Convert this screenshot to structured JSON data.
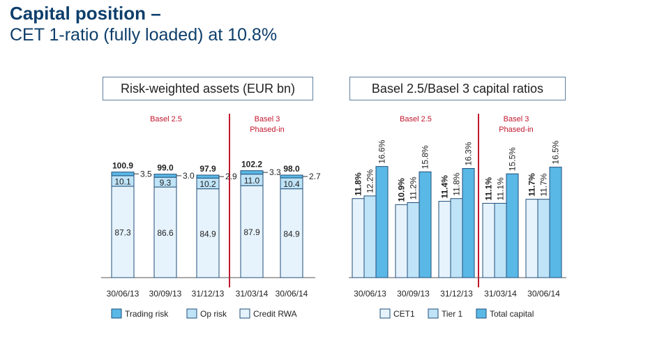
{
  "page": {
    "title": "Capital position –",
    "subtitle": "CET 1-ratio (fully loaded) at 10.8%"
  },
  "colors": {
    "title": "#0d3e6b",
    "divider": "#c0162c",
    "period_label": "#c0162c",
    "credit_rwa": "#e6f3fc",
    "op_risk": "#bfe3f7",
    "trading_risk": "#5ab8e6",
    "cet1": "#e6f3fc",
    "tier1": "#bfe3f7",
    "total_capital": "#5ab8e6",
    "bar_border": "#1f4e79"
  },
  "chart_data": [
    {
      "type": "bar",
      "stacked": true,
      "title": "Risk-weighted assets (EUR bn)",
      "categories": [
        "30/06/13",
        "30/09/13",
        "31/12/13",
        "31/03/14",
        "30/06/14"
      ],
      "series": [
        {
          "name": "Credit RWA",
          "values": [
            87.3,
            86.6,
            84.9,
            87.9,
            84.9
          ]
        },
        {
          "name": "Op risk",
          "values": [
            10.1,
            9.3,
            10.2,
            11.0,
            10.4
          ]
        },
        {
          "name": "Trading risk",
          "values": [
            3.5,
            3.0,
            2.9,
            3.3,
            2.7
          ]
        }
      ],
      "totals": [
        "100.9",
        "99.0",
        "97.9",
        "102.2",
        "98.0"
      ],
      "credit_labels": [
        "87.3",
        "86.6",
        "84.9",
        "87.9",
        "84.9"
      ],
      "op_labels": [
        "10.1",
        "9.3",
        "10.2",
        "11.0",
        "10.4"
      ],
      "trading_labels": [
        "3.5",
        "3.0",
        "2.9",
        "3.3",
        "2.7"
      ],
      "period_labels": {
        "left": "Basel 2.5",
        "right_line1": "Basel 3",
        "right_line2": "Phased-in"
      },
      "divider_after_index": 2,
      "legend": [
        "Trading risk",
        "Op risk",
        "Credit RWA"
      ],
      "legend_position": "bottom",
      "grid": false
    },
    {
      "type": "bar",
      "grouped": true,
      "title": "Basel 2.5/Basel 3 capital ratios",
      "categories": [
        "30/06/13",
        "30/09/13",
        "31/12/13",
        "31/03/14",
        "30/06/14"
      ],
      "series": [
        {
          "name": "CET1",
          "values": [
            11.8,
            10.9,
            11.4,
            11.1,
            11.7
          ],
          "labels": [
            "11.8%",
            "10.9%",
            "11.4%",
            "11.1%",
            "11.7%"
          ]
        },
        {
          "name": "Tier 1",
          "values": [
            12.2,
            11.2,
            11.8,
            11.1,
            11.7
          ],
          "labels": [
            "12.2%",
            "11.2%",
            "11.8%",
            "11.1%",
            "11.7%"
          ]
        },
        {
          "name": "Total capital",
          "values": [
            16.6,
            15.8,
            16.3,
            15.5,
            16.5
          ],
          "labels": [
            "16.6%",
            "15.8%",
            "16.3%",
            "15.5%",
            "16.5%"
          ]
        }
      ],
      "period_labels": {
        "left": "Basel 2.5",
        "right_line1": "Basel 3",
        "right_line2": "Phased-in"
      },
      "divider_after_index": 2,
      "legend": [
        "CET1",
        "Tier 1",
        "Total capital"
      ],
      "legend_position": "bottom",
      "grid": false
    }
  ]
}
